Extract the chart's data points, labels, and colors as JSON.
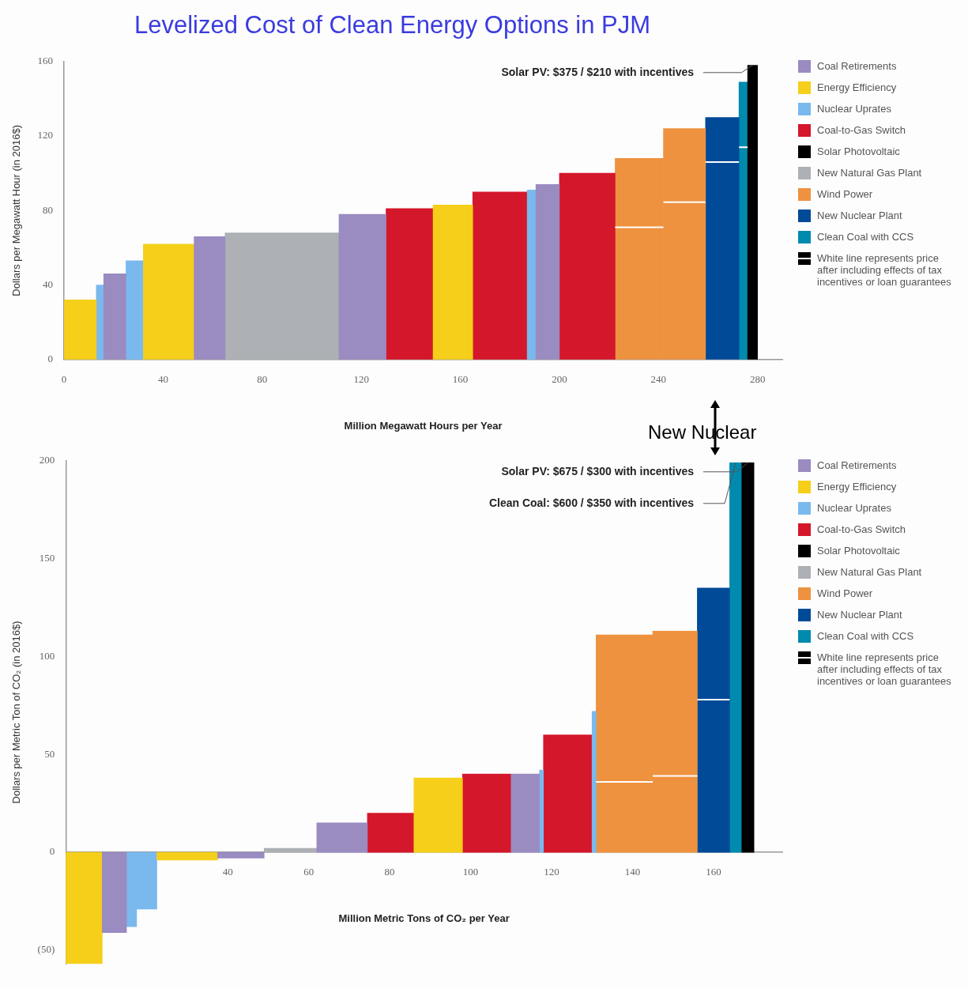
{
  "chart_data": [
    {
      "type": "histogram",
      "title": "Levelized Cost of Clean Energy Options in PJM",
      "xlabel": "Million Megawatt Hours per Year",
      "ylabel": "Dollars per Megawatt Hour (in 2016$)",
      "bins": [
        0,
        13,
        16,
        25,
        32,
        52.5,
        65,
        111,
        130,
        149,
        165,
        187,
        190.5,
        200,
        222.5,
        242,
        259,
        272.5,
        276,
        280
      ],
      "series": [
        {
          "name": "Coal Retirements",
          "color": "#9a8bc1",
          "values": [
            null,
            null,
            46,
            null,
            null,
            66,
            null,
            78,
            null,
            null,
            null,
            null,
            94,
            null,
            null,
            null,
            null,
            null,
            null
          ]
        },
        {
          "name": "Energy Efficiency",
          "color": "#f5cf1a",
          "values": [
            32,
            null,
            null,
            null,
            62,
            null,
            null,
            null,
            null,
            83,
            null,
            null,
            null,
            null,
            null,
            null,
            null,
            null,
            null
          ]
        },
        {
          "name": "Nuclear Uprates",
          "color": "#7ab9ee",
          "values": [
            null,
            40,
            null,
            53,
            null,
            null,
            null,
            null,
            null,
            null,
            null,
            91,
            null,
            null,
            null,
            null,
            null,
            null,
            null
          ]
        },
        {
          "name": "Coal-to-Gas Switch",
          "color": "#d4172a",
          "values": [
            null,
            null,
            null,
            null,
            null,
            null,
            null,
            null,
            81,
            null,
            90,
            null,
            null,
            100,
            null,
            null,
            null,
            null,
            null
          ]
        },
        {
          "name": "Solar Photovoltaic",
          "color": "#000000",
          "values": [
            null,
            null,
            null,
            null,
            null,
            null,
            null,
            null,
            null,
            null,
            null,
            null,
            null,
            null,
            null,
            null,
            null,
            null,
            158
          ]
        },
        {
          "name": "New Natural Gas Plant",
          "color": "#adb0b4",
          "values": [
            null,
            null,
            null,
            null,
            null,
            null,
            68,
            null,
            null,
            null,
            null,
            null,
            null,
            null,
            null,
            null,
            null,
            null,
            null
          ]
        },
        {
          "name": "Wind Power",
          "color": "#ee9240",
          "values": [
            null,
            null,
            null,
            null,
            null,
            null,
            null,
            null,
            null,
            null,
            null,
            null,
            null,
            null,
            108,
            124,
            null,
            null,
            null
          ]
        },
        {
          "name": "New Nuclear Plant",
          "color": "#004a98",
          "values": [
            null,
            null,
            null,
            null,
            null,
            null,
            null,
            null,
            null,
            null,
            null,
            null,
            null,
            null,
            null,
            null,
            130,
            null,
            null
          ]
        },
        {
          "name": "Clean Coal with CCS",
          "color": "#008aae",
          "values": [
            null,
            null,
            null,
            null,
            null,
            null,
            null,
            null,
            null,
            null,
            null,
            null,
            null,
            null,
            null,
            null,
            null,
            149,
            null
          ]
        },
        {
          "name": "White line represents price after including effects of tax incentives or loan guarantees",
          "type": "line",
          "color": "#ffffff",
          "x": [
            222.5,
            242,
            null,
            242,
            259,
            null,
            259,
            272.5,
            null,
            272.5,
            276
          ],
          "values": [
            71,
            71,
            null,
            84.5,
            84.5,
            null,
            106,
            106,
            null,
            114,
            114
          ]
        }
      ],
      "xlim": [
        0,
        290
      ],
      "xticks": [
        0,
        40,
        80,
        120,
        160,
        200,
        240,
        280
      ],
      "ylim": [
        0,
        160
      ],
      "yticks": [
        0,
        40,
        80,
        120,
        160
      ],
      "annotations": [
        {
          "text": "Solar PV: $375 / $210 with incentives",
          "x": 278,
          "y": 158
        }
      ],
      "legend": "right",
      "grid": false,
      "marker": "none"
    },
    {
      "type": "histogram",
      "subtitle": "New Nuclear",
      "xlabel": "Million Metric Tons of CO₂ per Year",
      "ylabel": "Dollars per Metric Ton of CO₂ (in 2016$)",
      "bins": [
        0,
        9,
        15,
        17.5,
        22.5,
        37.5,
        49,
        62,
        74.5,
        86,
        98,
        110,
        117,
        118,
        130,
        131,
        145,
        156,
        164,
        167,
        170
      ],
      "series": [
        {
          "name": "Coal Retirements",
          "color": "#9a8bc1",
          "values": [
            null,
            -41,
            null,
            null,
            null,
            -3,
            null,
            15,
            null,
            null,
            null,
            40,
            null,
            null,
            null,
            null,
            null,
            null,
            null,
            null
          ]
        },
        {
          "name": "Energy Efficiency",
          "color": "#f5cf1a",
          "values": [
            -57,
            null,
            null,
            null,
            -4,
            null,
            null,
            null,
            null,
            38,
            null,
            null,
            null,
            null,
            null,
            null,
            null,
            null,
            null,
            null
          ]
        },
        {
          "name": "Nuclear Uprates",
          "color": "#7ab9ee",
          "values": [
            null,
            null,
            -38,
            -29,
            null,
            null,
            null,
            null,
            null,
            null,
            null,
            null,
            42,
            null,
            72,
            null,
            null,
            null,
            null,
            null
          ]
        },
        {
          "name": "Coal-to-Gas Switch",
          "color": "#d4172a",
          "values": [
            null,
            null,
            null,
            null,
            null,
            null,
            null,
            null,
            20,
            null,
            40,
            null,
            null,
            60,
            null,
            null,
            null,
            null,
            null,
            null
          ]
        },
        {
          "name": "Solar Photovoltaic",
          "color": "#000000",
          "values": [
            null,
            null,
            null,
            null,
            null,
            null,
            null,
            null,
            null,
            null,
            null,
            null,
            null,
            null,
            null,
            null,
            null,
            null,
            null,
            199
          ]
        },
        {
          "name": "New Natural Gas Plant",
          "color": "#adb0b4",
          "values": [
            null,
            null,
            null,
            null,
            null,
            null,
            2,
            null,
            null,
            null,
            null,
            null,
            null,
            null,
            null,
            null,
            null,
            null,
            null,
            null
          ]
        },
        {
          "name": "Wind Power",
          "color": "#ee9240",
          "values": [
            null,
            null,
            null,
            null,
            null,
            null,
            null,
            null,
            null,
            null,
            null,
            null,
            null,
            null,
            null,
            111,
            113,
            null,
            null,
            null
          ]
        },
        {
          "name": "New Nuclear Plant",
          "color": "#004a98",
          "values": [
            null,
            null,
            null,
            null,
            null,
            null,
            null,
            null,
            null,
            null,
            null,
            null,
            null,
            null,
            null,
            null,
            null,
            135,
            null,
            null
          ]
        },
        {
          "name": "Clean Coal with CCS",
          "color": "#008aae",
          "values": [
            null,
            null,
            null,
            null,
            null,
            null,
            null,
            null,
            null,
            null,
            null,
            null,
            null,
            null,
            null,
            null,
            null,
            null,
            199,
            null
          ]
        },
        {
          "name": "White line represents price after including effects of tax incentives or loan guarantees",
          "type": "line",
          "color": "#ffffff",
          "x": [
            131,
            145,
            null,
            145,
            156,
            null,
            156,
            164
          ],
          "values": [
            36,
            36,
            null,
            39,
            39,
            null,
            78,
            78
          ]
        }
      ],
      "xlim": [
        0,
        177
      ],
      "xticks": [
        40,
        60,
        80,
        100,
        120,
        140,
        160
      ],
      "ylim": [
        -57,
        200
      ],
      "yticks": [
        {
          "value": -50,
          "label": "(50)"
        },
        0,
        50,
        100,
        150,
        200
      ],
      "annotations": [
        {
          "text": "Solar PV: $675 / $300 with incentives",
          "x": 168.5,
          "y": 199
        },
        {
          "text": "Clean Coal: $600 / $350 with incentives",
          "x": 165.5,
          "y": 199
        }
      ],
      "legend": "right",
      "grid": false,
      "marker": "none"
    }
  ]
}
